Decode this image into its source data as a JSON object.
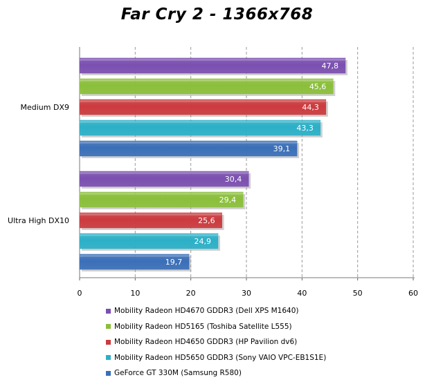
{
  "chart_data": {
    "type": "bar",
    "orientation": "horizontal",
    "title": "Far Cry 2 - 1366x768",
    "categories": [
      "Medium DX9",
      "Ultra High DX10"
    ],
    "series": [
      {
        "name": "Mobility Radeon HD4670 GDDR3 (Dell XPS M1640)",
        "color": "#7b4fb0",
        "values": [
          47.8,
          30.4
        ],
        "labels": [
          "47,8",
          "30,4"
        ]
      },
      {
        "name": "Mobility Radeon HD5165 (Toshiba Satellite L555)",
        "color": "#8bbf3a",
        "values": [
          45.6,
          29.4
        ],
        "labels": [
          "45,6",
          "29,4"
        ]
      },
      {
        "name": "Mobility Radeon HD4650 GDDR3 (HP Pavilion dv6)",
        "color": "#cc3a3e",
        "values": [
          44.3,
          25.6
        ],
        "labels": [
          "44,3",
          "25,6"
        ]
      },
      {
        "name": "Mobility Radeon HD5650 GDDR3 (Sony VAIO VPC-EB1S1E)",
        "color": "#2bb0c8",
        "values": [
          43.3,
          24.9
        ],
        "labels": [
          "43,3",
          "24,9"
        ]
      },
      {
        "name": "GeForce GT 330M (Samsung R580)",
        "color": "#3a6fb8",
        "values": [
          39.1,
          19.7
        ],
        "labels": [
          "39,1",
          "19,7"
        ]
      }
    ],
    "xlim": [
      0,
      60
    ],
    "xticks": [
      0,
      10,
      20,
      30,
      40,
      50,
      60
    ],
    "grid": true,
    "legend_position": "bottom"
  }
}
